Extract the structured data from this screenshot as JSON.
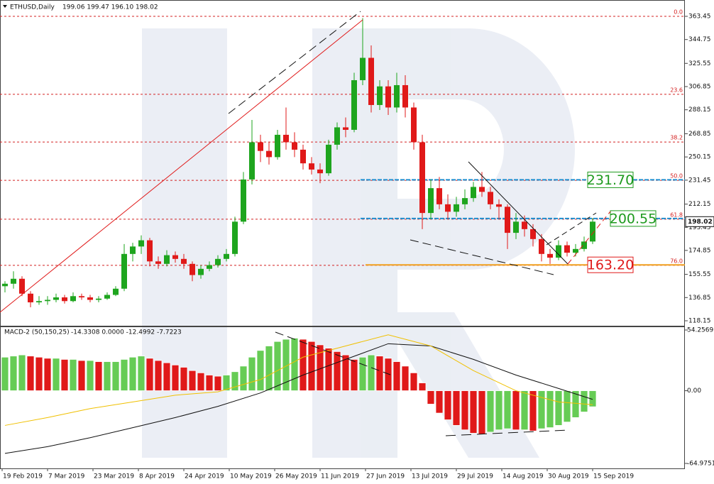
{
  "chart_data": {
    "type": "candlestick",
    "title": "ETHUSD,Daily",
    "ohlc_text": "199.06 199.47 196.10 198.02",
    "up_color": "#1ea51e",
    "down_color": "#e01919",
    "ylim": [
      114.72,
      375.46
    ],
    "yticks": [
      363.45,
      344.75,
      325.55,
      306.85,
      288.15,
      268.85,
      250.15,
      231.45,
      212.15,
      193.45,
      174.85,
      155.55,
      136.85,
      118.15
    ],
    "xticks": [
      "19 Feb 2019",
      "7 Mar 2019",
      "23 Mar 2019",
      "8 Apr 2019",
      "24 Apr 2019",
      "10 May 2019",
      "26 May 2019",
      "11 Jun 2019",
      "27 Jun 2019",
      "13 Jul 2019",
      "29 Jul 2019",
      "14 Aug 2019",
      "30 Aug 2019",
      "15 Sep 2019"
    ],
    "last_price": 198.02,
    "fib_color": "#d42020",
    "fib_levels": [
      {
        "label": "0.0",
        "price": 363.45
      },
      {
        "label": "23.6",
        "price": 300.6
      },
      {
        "label": "38.2",
        "price": 262.2
      },
      {
        "label": "50.0",
        "price": 231.3
      },
      {
        "label": "61.8",
        "price": 200.0
      },
      {
        "label": "76.0",
        "price": 162.8
      }
    ],
    "levels": [
      {
        "value": 231.7,
        "label": "231.70",
        "color": "#1e8fd0",
        "box": "#1e9a1e"
      },
      {
        "value": 200.55,
        "label": "200.55",
        "color": "#1e8fd0",
        "box": "#1e9a1e"
      },
      {
        "value": 163.2,
        "label": "163.20",
        "color": "#f0a020",
        "box": "#e01919"
      }
    ],
    "candles": [
      [
        146,
        150,
        141,
        148
      ],
      [
        148,
        158,
        144,
        152
      ],
      [
        152,
        154,
        138,
        140
      ],
      [
        140,
        142,
        129,
        133
      ],
      [
        133,
        138,
        131,
        134
      ],
      [
        134,
        138,
        131,
        135
      ],
      [
        135,
        140,
        133,
        137
      ],
      [
        137,
        139,
        132,
        134
      ],
      [
        134,
        141,
        133,
        138
      ],
      [
        138,
        140,
        135,
        137
      ],
      [
        137,
        139,
        133,
        135
      ],
      [
        135,
        138,
        133,
        136
      ],
      [
        136,
        141,
        135,
        139
      ],
      [
        139,
        146,
        138,
        144
      ],
      [
        144,
        180,
        142,
        172
      ],
      [
        172,
        181,
        166,
        178
      ],
      [
        178,
        187,
        172,
        183
      ],
      [
        183,
        185,
        162,
        166
      ],
      [
        166,
        170,
        160,
        164
      ],
      [
        164,
        175,
        162,
        171
      ],
      [
        171,
        174,
        165,
        168
      ],
      [
        168,
        172,
        160,
        164
      ],
      [
        164,
        166,
        150,
        155
      ],
      [
        155,
        163,
        152,
        160
      ],
      [
        160,
        166,
        158,
        163
      ],
      [
        163,
        171,
        161,
        168
      ],
      [
        168,
        176,
        166,
        172
      ],
      [
        172,
        202,
        170,
        198
      ],
      [
        198,
        238,
        196,
        232
      ],
      [
        232,
        280,
        228,
        262
      ],
      [
        262,
        268,
        246,
        255
      ],
      [
        255,
        262,
        244,
        250
      ],
      [
        250,
        272,
        248,
        268
      ],
      [
        268,
        290,
        256,
        262
      ],
      [
        262,
        270,
        250,
        256
      ],
      [
        256,
        260,
        240,
        245
      ],
      [
        245,
        250,
        236,
        240
      ],
      [
        240,
        245,
        229,
        237
      ],
      [
        237,
        264,
        235,
        260
      ],
      [
        260,
        278,
        256,
        274
      ],
      [
        274,
        282,
        266,
        272
      ],
      [
        272,
        318,
        270,
        312
      ],
      [
        312,
        362,
        308,
        330
      ],
      [
        330,
        340,
        286,
        292
      ],
      [
        292,
        312,
        288,
        307
      ],
      [
        307,
        312,
        284,
        290
      ],
      [
        290,
        318,
        286,
        308
      ],
      [
        308,
        316,
        282,
        290
      ],
      [
        290,
        294,
        256,
        262
      ],
      [
        262,
        268,
        192,
        205
      ],
      [
        205,
        232,
        200,
        225
      ],
      [
        225,
        234,
        208,
        212
      ],
      [
        212,
        220,
        200,
        206
      ],
      [
        206,
        218,
        202,
        212
      ],
      [
        212,
        224,
        208,
        217
      ],
      [
        217,
        230,
        214,
        226
      ],
      [
        226,
        238,
        218,
        222
      ],
      [
        222,
        226,
        208,
        212
      ],
      [
        212,
        216,
        200,
        210
      ],
      [
        210,
        212,
        176,
        189
      ],
      [
        189,
        205,
        184,
        198
      ],
      [
        198,
        203,
        186,
        192
      ],
      [
        192,
        196,
        178,
        184
      ],
      [
        184,
        188,
        166,
        172
      ],
      [
        172,
        176,
        164,
        169
      ],
      [
        169,
        183,
        167,
        179
      ],
      [
        179,
        182,
        170,
        173
      ],
      [
        173,
        180,
        170,
        176
      ],
      [
        176,
        186,
        174,
        182
      ],
      [
        182,
        201,
        180,
        198.02
      ]
    ],
    "macd": {
      "title": "MACD-2 (50,150,25)",
      "values_text": "-14.3308 0.0000 -12.4992 -7.7223",
      "ylim": [
        -69.41,
        56.16
      ],
      "yticks": [
        54.2569,
        {
          "value": 0,
          "label": "0.00"
        },
        -64.9751
      ],
      "up_color": "#66cc55",
      "down_color": "#e01919",
      "histogram": [
        30,
        31,
        32,
        31,
        30,
        29,
        29,
        28,
        28,
        27,
        27,
        26,
        26,
        26,
        28,
        30,
        31,
        29,
        27,
        25,
        23,
        21,
        18,
        16,
        14,
        13,
        14,
        17,
        22,
        30,
        36,
        40,
        44,
        46,
        47,
        46,
        44,
        41,
        38,
        35,
        32,
        28,
        30,
        32,
        31,
        29,
        26,
        22,
        16,
        7,
        -12,
        -20,
        -26,
        -31,
        -35,
        -38,
        -39,
        -37,
        -35,
        -34,
        -35,
        -35,
        -36,
        -34,
        -33,
        -31,
        -28,
        -24,
        -19,
        -14.3308
      ],
      "x": [
        0,
        5,
        10,
        15,
        20,
        25,
        30,
        35,
        40,
        45,
        50,
        55,
        60,
        65,
        69
      ],
      "lines": [
        {
          "color": "#111111",
          "values": [
            -56,
            -50,
            -42,
            -33,
            -24,
            -14,
            -2,
            14,
            28,
            42,
            40,
            28,
            14,
            2,
            -7.7223
          ]
        },
        {
          "color": "#f0c000",
          "values": [
            -31,
            -24,
            -16,
            -10,
            -4,
            -1,
            10,
            30,
            40,
            50,
            40,
            18,
            0,
            -10,
            -12.4992
          ]
        }
      ]
    }
  }
}
